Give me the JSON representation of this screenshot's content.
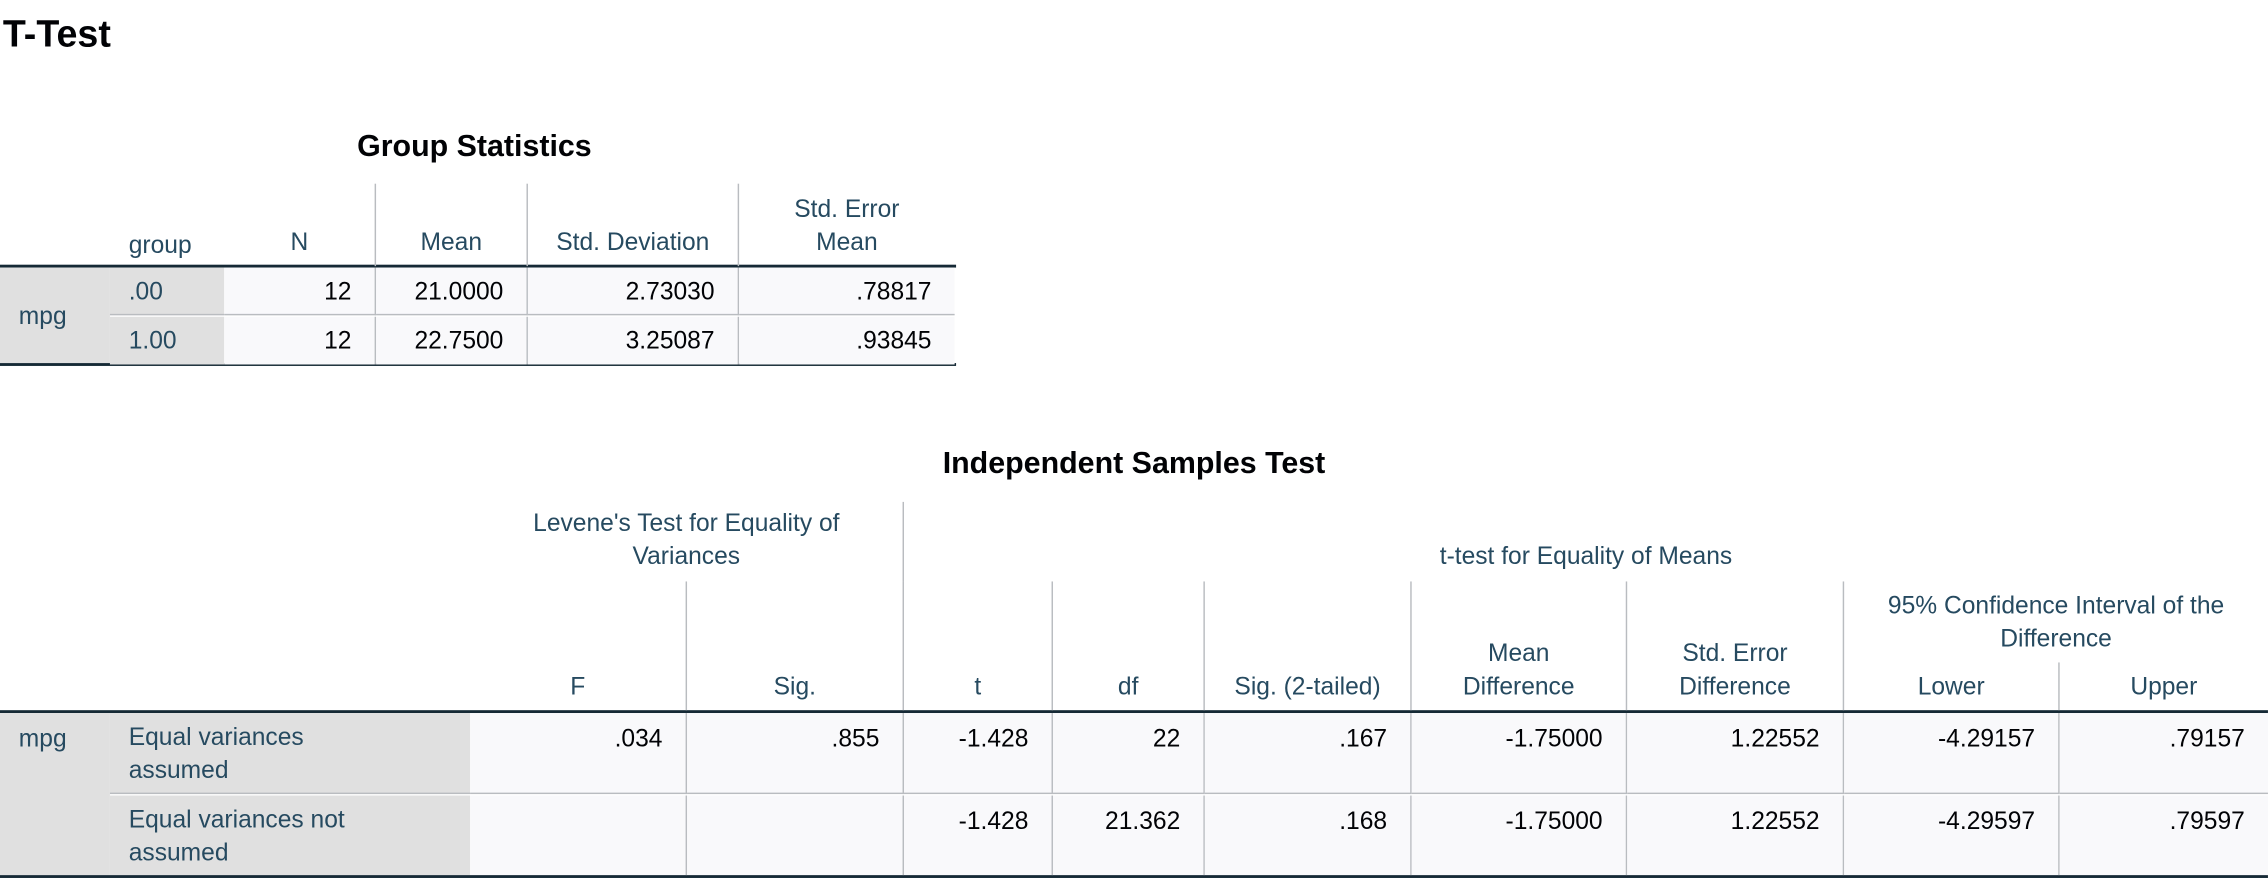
{
  "title": "T-Test",
  "group_statistics": {
    "title": "Group Statistics",
    "variable": "mpg",
    "columns": [
      "group",
      "N",
      "Mean",
      "Std. Deviation",
      "Std. Error Mean"
    ],
    "rows": [
      [
        ".00",
        "12",
        "21.0000",
        "2.73030",
        ".78817"
      ],
      [
        "1.00",
        "12",
        "22.7500",
        "3.25087",
        ".93845"
      ]
    ]
  },
  "independent_samples_test": {
    "title": "Independent Samples Test",
    "variable": "mpg",
    "levene_header": "Levene's Test for Equality of Variances",
    "ttest_header": "t-test for Equality of Means",
    "ci_header": "95% Confidence Interval of the Difference",
    "columns": [
      "F",
      "Sig.",
      "t",
      "df",
      "Sig. (2-tailed)",
      "Mean Difference",
      "Std. Error Difference",
      "Lower",
      "Upper"
    ],
    "rows": [
      {
        "label": "Equal variances assumed",
        "cells": [
          ".034",
          ".855",
          "-1.428",
          "22",
          ".167",
          "-1.75000",
          "1.22552",
          "-4.29157",
          ".79157"
        ]
      },
      {
        "label": "Equal variances not assumed",
        "cells": [
          null,
          null,
          "-1.428",
          "21.362",
          ".168",
          "-1.75000",
          "1.22552",
          "-4.29597",
          ".79597"
        ]
      }
    ]
  }
}
